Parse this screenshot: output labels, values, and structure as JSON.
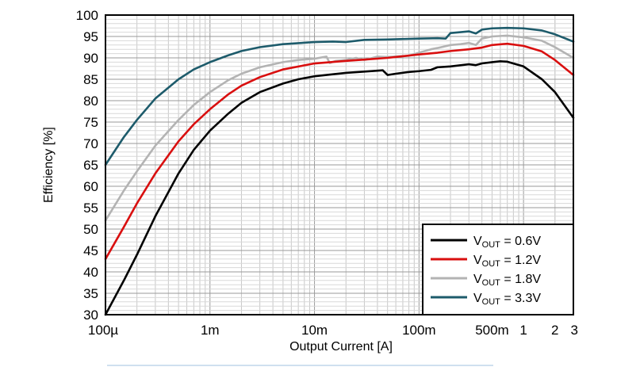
{
  "chart_data": {
    "type": "line",
    "xlabel": "Output Current [A]",
    "ylabel": "Efficiency [%]",
    "x_scale": "log",
    "xlim": [
      0.0001,
      3
    ],
    "ylim": [
      30,
      100
    ],
    "grid": true,
    "legend_position": "bottom-right",
    "x_ticks": [
      {
        "value": 0.0001,
        "label": "100µ"
      },
      {
        "value": 0.001,
        "label": "1m"
      },
      {
        "value": 0.01,
        "label": "10m"
      },
      {
        "value": 0.1,
        "label": "100m"
      },
      {
        "value": 0.5,
        "label": "500m"
      },
      {
        "value": 1,
        "label": "1"
      },
      {
        "value": 2,
        "label": "2"
      },
      {
        "value": 3,
        "label": "3"
      }
    ],
    "y_ticks": [
      30,
      35,
      40,
      45,
      50,
      55,
      60,
      65,
      70,
      75,
      80,
      85,
      90,
      95,
      100
    ],
    "series": [
      {
        "name": "VOUT = 0.6V",
        "label_main": "V",
        "label_sub": "OUT",
        "label_rest": " = 0.6V",
        "color": "#000000",
        "points": [
          [
            0.0001,
            30
          ],
          [
            0.00015,
            38
          ],
          [
            0.0002,
            44
          ],
          [
            0.0003,
            53
          ],
          [
            0.0005,
            63
          ],
          [
            0.0007,
            68.5
          ],
          [
            0.001,
            73
          ],
          [
            0.0015,
            77
          ],
          [
            0.002,
            79.5
          ],
          [
            0.003,
            82
          ],
          [
            0.005,
            84
          ],
          [
            0.007,
            85
          ],
          [
            0.01,
            85.7
          ],
          [
            0.02,
            86.5
          ],
          [
            0.03,
            86.8
          ],
          [
            0.045,
            87.1
          ],
          [
            0.05,
            86
          ],
          [
            0.06,
            86.3
          ],
          [
            0.08,
            86.7
          ],
          [
            0.1,
            86.9
          ],
          [
            0.13,
            87.2
          ],
          [
            0.15,
            87.8
          ],
          [
            0.2,
            88
          ],
          [
            0.3,
            88.5
          ],
          [
            0.35,
            88.3
          ],
          [
            0.4,
            88.7
          ],
          [
            0.5,
            89
          ],
          [
            0.6,
            89.2
          ],
          [
            0.7,
            89.1
          ],
          [
            1,
            88
          ],
          [
            1.5,
            85
          ],
          [
            2,
            82
          ],
          [
            3,
            76
          ]
        ]
      },
      {
        "name": "VOUT = 1.2V",
        "label_main": "V",
        "label_sub": "OUT",
        "label_rest": " = 1.2V",
        "color": "#d90f0f",
        "points": [
          [
            0.0001,
            43
          ],
          [
            0.00015,
            50.5
          ],
          [
            0.0002,
            56
          ],
          [
            0.0003,
            63
          ],
          [
            0.0005,
            70.5
          ],
          [
            0.0007,
            74.5
          ],
          [
            0.001,
            78
          ],
          [
            0.0015,
            81.5
          ],
          [
            0.002,
            83.5
          ],
          [
            0.003,
            85.5
          ],
          [
            0.005,
            87.3
          ],
          [
            0.01,
            88.7
          ],
          [
            0.02,
            89.3
          ],
          [
            0.03,
            89.6
          ],
          [
            0.05,
            90
          ],
          [
            0.1,
            90.8
          ],
          [
            0.15,
            91.2
          ],
          [
            0.2,
            91.6
          ],
          [
            0.3,
            92
          ],
          [
            0.4,
            92.4
          ],
          [
            0.5,
            93
          ],
          [
            0.7,
            93.3
          ],
          [
            1,
            92.8
          ],
          [
            1.5,
            91.5
          ],
          [
            2,
            89.5
          ],
          [
            3,
            86
          ]
        ]
      },
      {
        "name": "VOUT = 1.8V",
        "label_main": "V",
        "label_sub": "OUT",
        "label_rest": " = 1.8V",
        "color": "#b3b3b3",
        "points": [
          [
            0.0001,
            52
          ],
          [
            0.00015,
            59
          ],
          [
            0.0002,
            63.5
          ],
          [
            0.0003,
            69.5
          ],
          [
            0.0005,
            75.5
          ],
          [
            0.0007,
            79
          ],
          [
            0.001,
            82
          ],
          [
            0.0015,
            84.8
          ],
          [
            0.002,
            86.3
          ],
          [
            0.003,
            87.8
          ],
          [
            0.005,
            89
          ],
          [
            0.007,
            89.5
          ],
          [
            0.01,
            89.8
          ],
          [
            0.013,
            90.3
          ],
          [
            0.014,
            88.8
          ],
          [
            0.016,
            89.3
          ],
          [
            0.02,
            89.5
          ],
          [
            0.025,
            90
          ],
          [
            0.03,
            89.5
          ],
          [
            0.04,
            90.3
          ],
          [
            0.05,
            90.2
          ],
          [
            0.08,
            90.5
          ],
          [
            0.1,
            91.2
          ],
          [
            0.13,
            92
          ],
          [
            0.15,
            92.3
          ],
          [
            0.2,
            93
          ],
          [
            0.25,
            93.2
          ],
          [
            0.3,
            93.5
          ],
          [
            0.35,
            93
          ],
          [
            0.4,
            94.5
          ],
          [
            0.5,
            95
          ],
          [
            0.7,
            95.2
          ],
          [
            1,
            94.8
          ],
          [
            1.5,
            94
          ],
          [
            2,
            92.5
          ],
          [
            3,
            90
          ]
        ]
      },
      {
        "name": "VOUT = 3.3V",
        "label_main": "V",
        "label_sub": "OUT",
        "label_rest": " = 3.3V",
        "color": "#1d5b6b",
        "points": [
          [
            0.0001,
            65
          ],
          [
            0.00015,
            71.5
          ],
          [
            0.0002,
            75.5
          ],
          [
            0.0003,
            80.5
          ],
          [
            0.0005,
            85
          ],
          [
            0.0007,
            87.3
          ],
          [
            0.001,
            89
          ],
          [
            0.0015,
            90.6
          ],
          [
            0.002,
            91.6
          ],
          [
            0.003,
            92.5
          ],
          [
            0.005,
            93.2
          ],
          [
            0.01,
            93.7
          ],
          [
            0.015,
            93.8
          ],
          [
            0.02,
            93.7
          ],
          [
            0.03,
            94.2
          ],
          [
            0.05,
            94.3
          ],
          [
            0.1,
            94.5
          ],
          [
            0.15,
            94.6
          ],
          [
            0.18,
            94.5
          ],
          [
            0.2,
            95.8
          ],
          [
            0.25,
            96
          ],
          [
            0.3,
            96.2
          ],
          [
            0.35,
            95.7
          ],
          [
            0.4,
            96.6
          ],
          [
            0.5,
            96.9
          ],
          [
            0.7,
            97
          ],
          [
            1,
            96.9
          ],
          [
            1.5,
            96.4
          ],
          [
            2,
            95.5
          ],
          [
            3,
            93.8
          ]
        ]
      }
    ]
  }
}
